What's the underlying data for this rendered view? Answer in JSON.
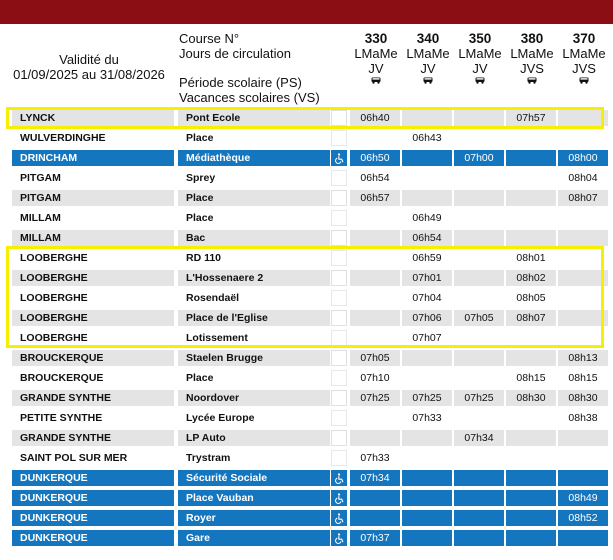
{
  "header": {
    "validity_label": "Validité du",
    "validity_range": "01/09/2025 au 31/08/2026",
    "course_label": "Course N°",
    "days_label": "Jours de circulation",
    "school_period_label": "Période scolaire (PS)",
    "school_holidays_label": "Vacances scolaires (VS)"
  },
  "columns": [
    {
      "number": "330",
      "days1": "LMaMe",
      "days2": "JV",
      "icon": "bus-icon"
    },
    {
      "number": "340",
      "days1": "LMaMe",
      "days2": "JV",
      "icon": "bus-icon"
    },
    {
      "number": "350",
      "days1": "LMaMe",
      "days2": "JV",
      "icon": "bus-icon"
    },
    {
      "number": "380",
      "days1": "LMaMe",
      "days2": "JVS",
      "icon": "bus-icon"
    },
    {
      "number": "370",
      "days1": "LMaMe",
      "days2": "JVS",
      "icon": "bus-icon"
    }
  ],
  "rows": [
    {
      "town": "LYNCK",
      "stop": "Pont Ecole",
      "style": "grey",
      "accessible": false,
      "times": [
        "06h40",
        "",
        "",
        "07h57",
        ""
      ]
    },
    {
      "town": "WULVERDINGHE",
      "stop": "Place",
      "style": "white",
      "accessible": false,
      "times": [
        "",
        "06h43",
        "",
        "",
        ""
      ]
    },
    {
      "town": "DRINCHAM",
      "stop": "Médiathèque",
      "style": "blue",
      "accessible": true,
      "times": [
        "06h50",
        "",
        "07h00",
        "",
        "08h00"
      ]
    },
    {
      "town": "PITGAM",
      "stop": "Sprey",
      "style": "white",
      "accessible": false,
      "times": [
        "06h54",
        "",
        "",
        "",
        "08h04"
      ]
    },
    {
      "town": "PITGAM",
      "stop": "Place",
      "style": "grey",
      "accessible": false,
      "times": [
        "06h57",
        "",
        "",
        "",
        "08h07"
      ]
    },
    {
      "town": "MILLAM",
      "stop": "Place",
      "style": "white",
      "accessible": false,
      "times": [
        "",
        "06h49",
        "",
        "",
        ""
      ]
    },
    {
      "town": "MILLAM",
      "stop": "Bac",
      "style": "grey",
      "accessible": false,
      "times": [
        "",
        "06h54",
        "",
        "",
        ""
      ]
    },
    {
      "town": "LOOBERGHE",
      "stop": "RD 110",
      "style": "white",
      "accessible": false,
      "times": [
        "",
        "06h59",
        "",
        "08h01",
        ""
      ]
    },
    {
      "town": "LOOBERGHE",
      "stop": "L'Hossenaere 2",
      "style": "grey",
      "accessible": false,
      "times": [
        "",
        "07h01",
        "",
        "08h02",
        ""
      ]
    },
    {
      "town": "LOOBERGHE",
      "stop": "Rosendaël",
      "style": "white",
      "accessible": false,
      "times": [
        "",
        "07h04",
        "",
        "08h05",
        ""
      ]
    },
    {
      "town": "LOOBERGHE",
      "stop": "Place de l'Eglise",
      "style": "grey",
      "accessible": false,
      "times": [
        "",
        "07h06",
        "07h05",
        "08h07",
        ""
      ]
    },
    {
      "town": "LOOBERGHE",
      "stop": "Lotissement",
      "style": "white",
      "accessible": false,
      "times": [
        "",
        "07h07",
        "",
        "",
        ""
      ]
    },
    {
      "town": "BROUCKERQUE",
      "stop": "Staelen Brugge",
      "style": "grey",
      "accessible": false,
      "times": [
        "07h05",
        "",
        "",
        "",
        "08h13"
      ]
    },
    {
      "town": "BROUCKERQUE",
      "stop": "Place",
      "style": "white",
      "accessible": false,
      "times": [
        "07h10",
        "",
        "",
        "08h15",
        "08h15"
      ]
    },
    {
      "town": "GRANDE SYNTHE",
      "stop": "Noordover",
      "style": "grey",
      "accessible": false,
      "times": [
        "07h25",
        "07h25",
        "07h25",
        "08h30",
        "08h30"
      ]
    },
    {
      "town": "PETITE SYNTHE",
      "stop": "Lycée Europe",
      "style": "white",
      "accessible": false,
      "times": [
        "",
        "07h33",
        "",
        "",
        "08h38"
      ]
    },
    {
      "town": "GRANDE SYNTHE",
      "stop": "LP Auto",
      "style": "grey",
      "accessible": false,
      "times": [
        "",
        "",
        "07h34",
        "",
        ""
      ]
    },
    {
      "town": "SAINT POL SUR MER",
      "stop": "Trystram",
      "style": "white",
      "accessible": false,
      "times": [
        "07h33",
        "",
        "",
        "",
        ""
      ]
    },
    {
      "town": "DUNKERQUE",
      "stop": "Sécurité Sociale",
      "style": "blue",
      "accessible": true,
      "times": [
        "07h34",
        "",
        "",
        "",
        ""
      ]
    },
    {
      "town": "DUNKERQUE",
      "stop": "Place Vauban",
      "style": "blue",
      "accessible": true,
      "times": [
        "",
        "",
        "",
        "",
        "08h49"
      ]
    },
    {
      "town": "DUNKERQUE",
      "stop": "Royer",
      "style": "blue",
      "accessible": true,
      "times": [
        "",
        "",
        "",
        "",
        "08h52"
      ]
    },
    {
      "town": "DUNKERQUE",
      "stop": "Gare",
      "style": "blue",
      "accessible": true,
      "times": [
        "07h37",
        "",
        "",
        "",
        ""
      ]
    }
  ],
  "colors": {
    "top_bar": "#8a0e14",
    "blue_row": "#1576c0",
    "grey_row": "#e4e4e4",
    "highlight": "#f6f000"
  },
  "icons": {
    "bus": "bus-icon",
    "accessibility": "wheelchair-icon"
  }
}
